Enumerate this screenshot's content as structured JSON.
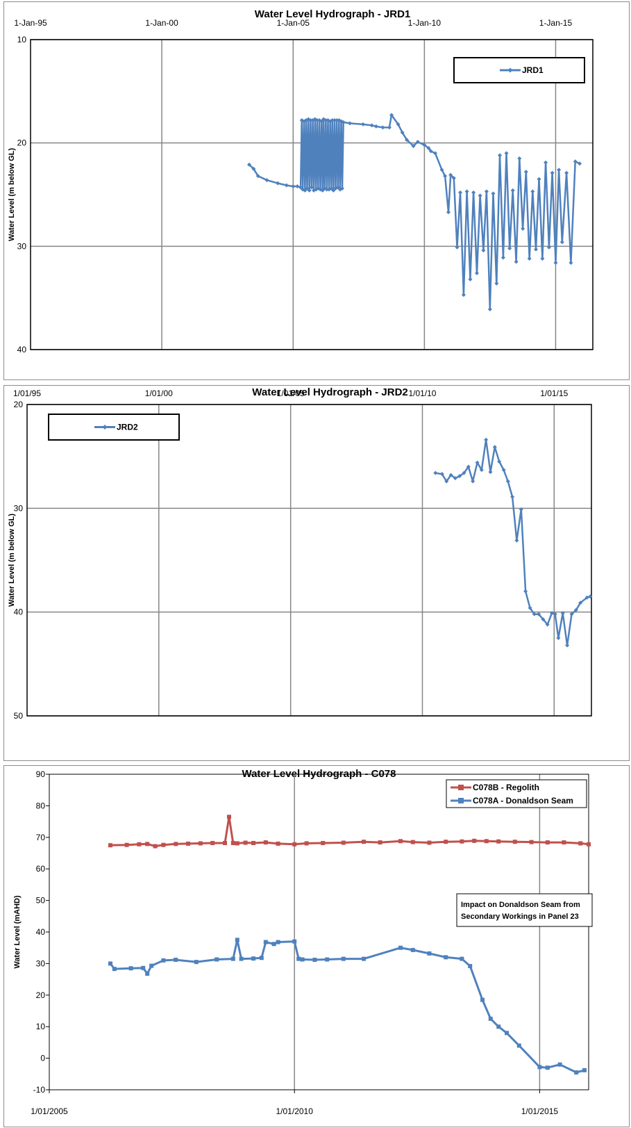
{
  "chart_data": [
    {
      "type": "line",
      "title": "Water Level Hydrograph - JRD1",
      "ylabel": "Water Level (m below GL)",
      "xlabel": "",
      "x_tick_labels": [
        "1-Jan-95",
        "1-Jan-00",
        "1-Jan-05",
        "1-Jan-10",
        "1-Jan-15"
      ],
      "y_tick_labels": [
        "10",
        "20",
        "30",
        "40"
      ],
      "xlim": [
        "1995-01-01",
        "2016-06-01"
      ],
      "ylim": [
        10,
        40
      ],
      "y_inverted": true,
      "grid": true,
      "legend_position": "top-right",
      "series": [
        {
          "name": "JRD1",
          "color": "#4f81bd",
          "x": [
            "2003-05-01",
            "2003-07-01",
            "2003-09-01",
            "2004-01-01",
            "2004-06-01",
            "2004-10-01",
            "2005-01-01",
            "2005-03-01",
            "2005-04-15",
            "2005-05-01",
            "2005-05-15",
            "2005-06-01",
            "2005-06-15",
            "2005-07-01",
            "2005-07-15",
            "2005-08-01",
            "2005-08-15",
            "2005-09-01",
            "2005-09-15",
            "2005-10-01",
            "2005-10-15",
            "2005-11-01",
            "2005-11-15",
            "2005-12-01",
            "2005-12-15",
            "2006-01-01",
            "2006-01-15",
            "2006-02-01",
            "2006-02-15",
            "2006-03-01",
            "2006-03-15",
            "2006-04-01",
            "2006-04-15",
            "2006-05-01",
            "2006-05-15",
            "2006-06-01",
            "2006-06-15",
            "2006-07-01",
            "2006-07-15",
            "2006-08-01",
            "2006-08-15",
            "2006-09-01",
            "2006-09-15",
            "2006-10-01",
            "2006-10-15",
            "2006-11-01",
            "2006-11-15",
            "2006-12-01",
            "2007-03-01",
            "2007-09-01",
            "2008-01-01",
            "2008-03-01",
            "2008-06-01",
            "2008-09-01",
            "2008-10-01",
            "2009-01-01",
            "2009-03-01",
            "2009-05-01",
            "2009-08-01",
            "2009-10-01",
            "2010-01-01",
            "2010-03-01",
            "2010-04-01",
            "2010-06-01",
            "2010-09-01",
            "2010-10-15",
            "2010-12-01",
            "2011-01-01",
            "2011-02-15",
            "2011-04-01",
            "2011-05-15",
            "2011-07-01",
            "2011-08-15",
            "2011-10-01",
            "2011-11-15",
            "2012-01-01",
            "2012-02-15",
            "2012-04-01",
            "2012-05-15",
            "2012-07-01",
            "2012-08-15",
            "2012-10-01",
            "2012-11-15",
            "2013-01-01",
            "2013-02-15",
            "2013-04-01",
            "2013-05-15",
            "2013-07-01",
            "2013-08-15",
            "2013-10-01",
            "2013-11-15",
            "2014-01-01",
            "2014-02-15",
            "2014-04-01",
            "2014-05-15",
            "2014-07-01",
            "2014-08-15",
            "2014-10-01",
            "2014-11-15",
            "2015-01-01",
            "2015-02-15",
            "2015-04-01",
            "2015-06-01",
            "2015-08-01",
            "2015-10-01",
            "2015-12-01"
          ],
          "y": [
            22.1,
            22.5,
            23.2,
            23.6,
            23.9,
            24.1,
            24.2,
            24.2,
            24.3,
            17.8,
            24.5,
            17.9,
            24.6,
            17.8,
            24.4,
            17.7,
            24.6,
            17.8,
            24.3,
            17.8,
            24.6,
            17.7,
            24.5,
            17.8,
            24.4,
            17.8,
            24.5,
            17.9,
            24.6,
            17.7,
            24.4,
            17.8,
            24.5,
            17.8,
            24.5,
            17.9,
            24.4,
            17.8,
            24.6,
            17.8,
            24.4,
            17.8,
            24.3,
            17.8,
            24.5,
            17.9,
            24.4,
            18.0,
            18.1,
            18.2,
            18.3,
            18.4,
            18.5,
            18.5,
            17.3,
            18.2,
            19.0,
            19.7,
            20.3,
            19.9,
            20.2,
            20.5,
            20.8,
            21.0,
            22.6,
            23.2,
            26.7,
            23.1,
            23.4,
            30.1,
            24.8,
            34.7,
            24.7,
            33.2,
            24.8,
            32.6,
            25.1,
            30.4,
            24.7,
            36.1,
            24.9,
            33.6,
            21.2,
            31.1,
            21.0,
            30.2,
            24.6,
            31.5,
            21.5,
            28.3,
            22.8,
            31.2,
            24.7,
            30.3,
            23.5,
            31.2,
            21.9,
            30.1,
            22.9,
            31.6,
            22.6,
            29.6,
            22.9,
            31.6,
            21.8,
            22.0
          ]
        }
      ]
    },
    {
      "type": "line",
      "title": "Water Level Hydrograph - JRD2",
      "ylabel": "Water Level (m below GL)",
      "xlabel": "",
      "x_tick_labels": [
        "1/01/95",
        "1/01/00",
        "1/01/05",
        "1/01/10",
        "1/01/15"
      ],
      "y_tick_labels": [
        "20",
        "30",
        "40",
        "50"
      ],
      "xlim": [
        "1995-01-01",
        "2016-06-01"
      ],
      "ylim": [
        20,
        50
      ],
      "y_inverted": true,
      "grid": true,
      "legend_position": "top-left",
      "series": [
        {
          "name": "JRD2",
          "color": "#4f81bd",
          "x": [
            "2010-07-01",
            "2010-10-01",
            "2010-12-01",
            "2011-02-01",
            "2011-04-01",
            "2011-06-01",
            "2011-08-01",
            "2011-10-01",
            "2011-12-01",
            "2012-02-01",
            "2012-04-01",
            "2012-06-01",
            "2012-08-01",
            "2012-10-01",
            "2012-12-01",
            "2013-02-01",
            "2013-04-01",
            "2013-06-01",
            "2013-08-01",
            "2013-10-01",
            "2013-12-01",
            "2014-02-01",
            "2014-04-01",
            "2014-06-01",
            "2014-08-01",
            "2014-10-01",
            "2014-12-01",
            "2015-01-15",
            "2015-03-01",
            "2015-05-01",
            "2015-07-01",
            "2015-09-01",
            "2015-11-01",
            "2016-01-01",
            "2016-04-01",
            "2016-05-15"
          ],
          "y": [
            26.6,
            26.7,
            27.4,
            26.8,
            27.1,
            26.9,
            26.6,
            26.0,
            27.4,
            25.6,
            26.3,
            23.4,
            26.5,
            24.1,
            25.5,
            26.3,
            27.4,
            28.9,
            33.1,
            30.1,
            38.0,
            39.6,
            40.2,
            40.2,
            40.7,
            41.2,
            40.1,
            40.2,
            42.5,
            40.1,
            43.2,
            40.2,
            39.8,
            39.1,
            38.6,
            38.5
          ]
        }
      ]
    },
    {
      "type": "line",
      "title": "Water Level Hydrograph - C078",
      "ylabel": "Water Level (mAHD)",
      "xlabel": "",
      "x_tick_labels": [
        "1/01/2005",
        "1/01/2010",
        "1/01/2015"
      ],
      "y_tick_labels": [
        "-10",
        "0",
        "10",
        "20",
        "30",
        "40",
        "50",
        "60",
        "70",
        "80",
        "90"
      ],
      "xlim": [
        "2005-01-01",
        "2016-01-01"
      ],
      "ylim": [
        -10,
        90
      ],
      "y_inverted": false,
      "grid": "vertical",
      "legend_position": "top-right",
      "annotation": "Impact on Donaldson Seam from Secondary Workings in Panel 23",
      "series": [
        {
          "name": "C078B - Regolith",
          "color": "#c0504d",
          "x": [
            "2006-04-01",
            "2006-08-01",
            "2006-11-01",
            "2007-01-01",
            "2007-03-01",
            "2007-05-01",
            "2007-08-01",
            "2007-11-01",
            "2008-02-01",
            "2008-05-01",
            "2008-08-01",
            "2008-09-01",
            "2008-10-01",
            "2008-11-01",
            "2009-01-01",
            "2009-03-01",
            "2009-06-01",
            "2009-09-01",
            "2010-01-01",
            "2010-04-01",
            "2010-08-01",
            "2011-01-01",
            "2011-06-01",
            "2011-10-01",
            "2012-03-01",
            "2012-06-01",
            "2012-10-01",
            "2013-02-01",
            "2013-06-01",
            "2013-09-01",
            "2013-12-01",
            "2014-03-01",
            "2014-07-01",
            "2014-11-01",
            "2015-03-01",
            "2015-07-01",
            "2015-11-01",
            "2016-01-01"
          ],
          "y": [
            67.5,
            67.6,
            67.8,
            67.9,
            67.2,
            67.6,
            67.9,
            68.0,
            68.1,
            68.2,
            68.2,
            76.5,
            68.2,
            68.1,
            68.3,
            68.2,
            68.4,
            68.0,
            67.8,
            68.1,
            68.2,
            68.3,
            68.6,
            68.4,
            68.8,
            68.5,
            68.3,
            68.6,
            68.7,
            68.9,
            68.8,
            68.7,
            68.6,
            68.5,
            68.4,
            68.4,
            68.1,
            67.8
          ]
        },
        {
          "name": "C078A - Donaldson  Seam",
          "color": "#4f81bd",
          "x": [
            "2006-04-01",
            "2006-05-01",
            "2006-09-01",
            "2006-12-01",
            "2007-01-01",
            "2007-02-01",
            "2007-05-01",
            "2007-08-01",
            "2008-01-01",
            "2008-06-01",
            "2008-10-01",
            "2008-11-01",
            "2008-12-01",
            "2009-03-01",
            "2009-05-01",
            "2009-06-01",
            "2009-08-01",
            "2009-09-01",
            "2010-01-01",
            "2010-02-01",
            "2010-03-01",
            "2010-06-01",
            "2010-09-01",
            "2011-01-01",
            "2011-06-01",
            "2012-03-01",
            "2012-06-01",
            "2012-10-01",
            "2013-02-01",
            "2013-06-01",
            "2013-08-01",
            "2013-11-01",
            "2014-01-01",
            "2014-03-01",
            "2014-05-01",
            "2014-08-01",
            "2015-01-01",
            "2015-03-01",
            "2015-06-01",
            "2015-10-01",
            "2015-12-01"
          ],
          "y": [
            30.0,
            28.3,
            28.5,
            28.6,
            26.8,
            29.3,
            31.0,
            31.2,
            30.5,
            31.3,
            31.5,
            37.5,
            31.5,
            31.6,
            31.8,
            36.8,
            36.2,
            36.8,
            37.0,
            31.5,
            31.3,
            31.2,
            31.3,
            31.5,
            31.5,
            35.0,
            34.3,
            33.2,
            32.0,
            31.5,
            29.2,
            18.5,
            12.5,
            10.0,
            8.0,
            4.0,
            -2.8,
            -3.0,
            -2.0,
            -4.5,
            -3.8
          ]
        }
      ]
    }
  ]
}
